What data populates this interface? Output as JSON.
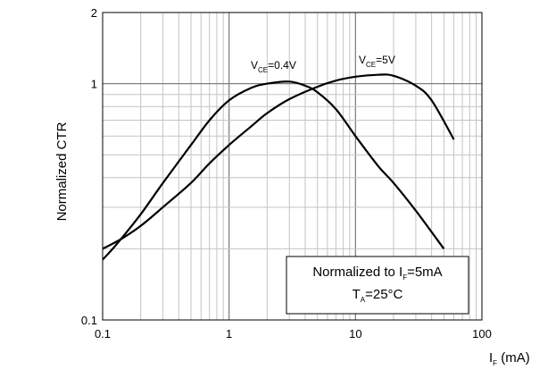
{
  "chart_data": {
    "type": "line",
    "title": "",
    "x_scale": "log",
    "y_scale": "log",
    "xlim": [
      0.1,
      100
    ],
    "ylim": [
      0.1,
      2
    ],
    "grid": true,
    "x_ticks": [
      "0.1",
      "1",
      "10",
      "100"
    ],
    "y_ticks": [
      "0.1",
      "1",
      "2"
    ],
    "xlabel": {
      "main": "I",
      "sub": "F",
      "rest": " (mA)"
    },
    "ylabel": "Normalized CTR",
    "series": [
      {
        "name": {
          "main": "V",
          "sub": "CE",
          "rest": "=0.4V"
        },
        "x": [
          0.1,
          0.13,
          0.2,
          0.3,
          0.5,
          0.7,
          1,
          1.5,
          2,
          3,
          4,
          5,
          7,
          10,
          15,
          20,
          30,
          50
        ],
        "y": [
          0.18,
          0.21,
          0.28,
          0.38,
          0.55,
          0.7,
          0.85,
          0.96,
          1.0,
          1.02,
          0.98,
          0.92,
          0.78,
          0.6,
          0.45,
          0.38,
          0.29,
          0.2
        ]
      },
      {
        "name": {
          "main": "V",
          "sub": "CE",
          "rest": "=5V"
        },
        "x": [
          0.1,
          0.14,
          0.2,
          0.3,
          0.5,
          0.7,
          1,
          1.5,
          2,
          3,
          5,
          7,
          10,
          15,
          20,
          30,
          40,
          60
        ],
        "y": [
          0.2,
          0.22,
          0.25,
          0.3,
          0.38,
          0.46,
          0.55,
          0.66,
          0.75,
          0.86,
          0.97,
          1.03,
          1.07,
          1.09,
          1.08,
          0.98,
          0.85,
          0.58
        ]
      }
    ],
    "annotation": {
      "line1_main": "Normalized to I",
      "line1_sub": "F",
      "line1_rest": "=5mA",
      "line2_main": "T",
      "line2_sub": "A",
      "line2_rest": "=25°C"
    }
  }
}
